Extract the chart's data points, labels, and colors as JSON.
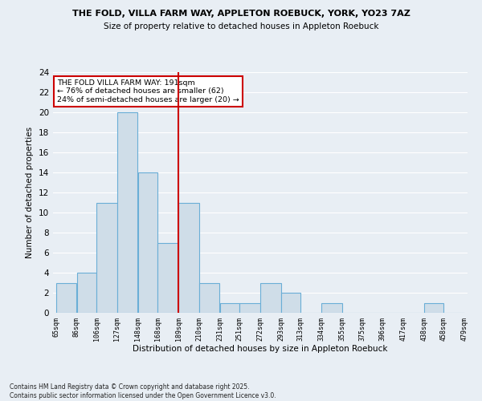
{
  "title_line1": "THE FOLD, VILLA FARM WAY, APPLETON ROEBUCK, YORK, YO23 7AZ",
  "title_line2": "Size of property relative to detached houses in Appleton Roebuck",
  "xlabel": "Distribution of detached houses by size in Appleton Roebuck",
  "ylabel": "Number of detached properties",
  "bar_edges": [
    65,
    86,
    106,
    127,
    148,
    168,
    189,
    210,
    231,
    251,
    272,
    293,
    313,
    334,
    355,
    375,
    396,
    417,
    438,
    458,
    479
  ],
  "bar_heights": [
    3,
    4,
    11,
    20,
    14,
    7,
    11,
    3,
    1,
    1,
    3,
    2,
    0,
    1,
    0,
    0,
    0,
    0,
    1,
    0
  ],
  "tick_labels": [
    "65sqm",
    "86sqm",
    "106sqm",
    "127sqm",
    "148sqm",
    "168sqm",
    "189sqm",
    "210sqm",
    "231sqm",
    "251sqm",
    "272sqm",
    "293sqm",
    "313sqm",
    "334sqm",
    "355sqm",
    "375sqm",
    "396sqm",
    "417sqm",
    "438sqm",
    "458sqm",
    "479sqm"
  ],
  "bar_color": "#cfdde8",
  "bar_edge_color": "#6aaed6",
  "vline_x": 189,
  "vline_color": "#cc0000",
  "ylim": [
    0,
    24
  ],
  "yticks": [
    0,
    2,
    4,
    6,
    8,
    10,
    12,
    14,
    16,
    18,
    20,
    22,
    24
  ],
  "annotation_title": "THE FOLD VILLA FARM WAY: 191sqm",
  "annotation_line2": "← 76% of detached houses are smaller (62)",
  "annotation_line3": "24% of semi-detached houses are larger (20) →",
  "annotation_box_color": "#ffffff",
  "annotation_box_edge": "#cc0000",
  "bg_color": "#e8eef4",
  "grid_color": "#ffffff",
  "footer_line1": "Contains HM Land Registry data © Crown copyright and database right 2025.",
  "footer_line2": "Contains public sector information licensed under the Open Government Licence v3.0."
}
